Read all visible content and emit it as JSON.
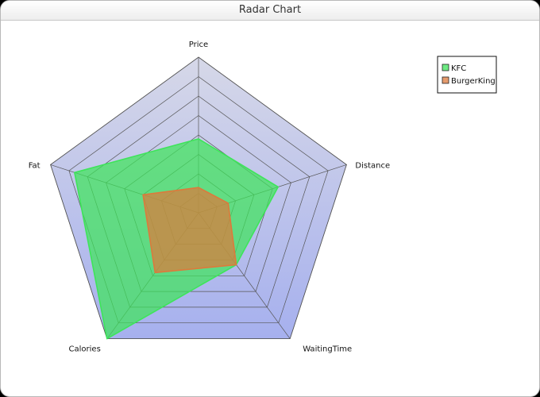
{
  "chart_data": {
    "type": "radar",
    "title": "Radar Chart",
    "axes": [
      "Price",
      "Distance",
      "WaitingTime",
      "Calories",
      "Fat"
    ],
    "rings": 8,
    "series": [
      {
        "name": "KFC",
        "values": [
          3.8,
          4.3,
          3.3,
          8.0,
          6.7
        ],
        "color": "#3ee45a"
      },
      {
        "name": "BurgerKing",
        "values": [
          1.3,
          1.6,
          3.3,
          3.8,
          3.0
        ],
        "color": "#dc7a3c"
      }
    ],
    "legend_position": "top-right",
    "colors": {
      "background_fill_top": "#d6d8e8",
      "background_fill_bottom": "#a6b0ee",
      "grid": "#555555"
    }
  }
}
